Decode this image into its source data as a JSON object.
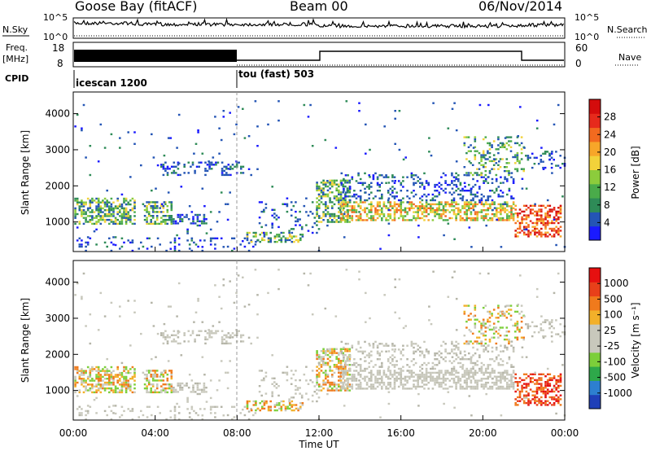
{
  "header": {
    "station": "Goose Bay (fitACF)",
    "beam": "Beam 00",
    "date": "06/Nov/2014"
  },
  "top_panels": {
    "nsky_label": "N.Sky",
    "nsearch_label": "N.Search",
    "nsky_ticks": [
      "10^5",
      "10^0"
    ],
    "freq_label_1": "Freq.",
    "freq_label_2": "[MHz]",
    "freq_ticks": [
      "18",
      "8"
    ],
    "nave_label": "Nave",
    "nave_ticks": [
      "60",
      "0"
    ],
    "cpid_label": "CPID",
    "cpid_segments": [
      {
        "name": "icescan 1200",
        "start_hour": 0,
        "end_hour": 8
      },
      {
        "name": "tou (fast) 503",
        "start_hour": 8,
        "end_hour": 24
      }
    ]
  },
  "chart_data": [
    {
      "type": "heatmap",
      "name": "power-panel",
      "ylabel": "Slant Range [km]",
      "yticks": [
        "4000",
        "3000",
        "2000",
        "1000"
      ],
      "ylim": [
        180,
        4600
      ],
      "xlabel": "",
      "xticks": [],
      "xlim": [
        0,
        24
      ],
      "colorbar": {
        "label": "Power [dB]",
        "ticks": [
          "28",
          "24",
          "20",
          "16",
          "12",
          "8",
          "4"
        ],
        "colors": [
          "#1a1aff",
          "#2455b5",
          "#2e8b57",
          "#4aab4a",
          "#8ccc3c",
          "#f2d23a",
          "#f7a629",
          "#f26a1f",
          "#e62a1c",
          "#d40c0c"
        ]
      }
    },
    {
      "type": "heatmap",
      "name": "velocity-panel",
      "ylabel": "Slant Range [km]",
      "yticks": [
        "4000",
        "3000",
        "2000",
        "1000"
      ],
      "ylim": [
        180,
        4600
      ],
      "xlabel": "Time UT",
      "xticks": [
        "00:00",
        "04:00",
        "08:00",
        "12:00",
        "16:00",
        "20:00",
        "00:00"
      ],
      "xlim": [
        0,
        24
      ],
      "colorbar": {
        "label": "Velocity [m s⁻¹]",
        "ticks": [
          "1000",
          "500",
          "100",
          "25",
          "-25",
          "-100",
          "-500",
          "-1000"
        ],
        "colors": [
          "#1f3fb8",
          "#2d7fd0",
          "#2ea84a",
          "#7ccf3a",
          "#c8c8bc",
          "#c8c8bc",
          "#f2b02a",
          "#f07a1c",
          "#e8401a",
          "#e61010"
        ]
      }
    }
  ]
}
